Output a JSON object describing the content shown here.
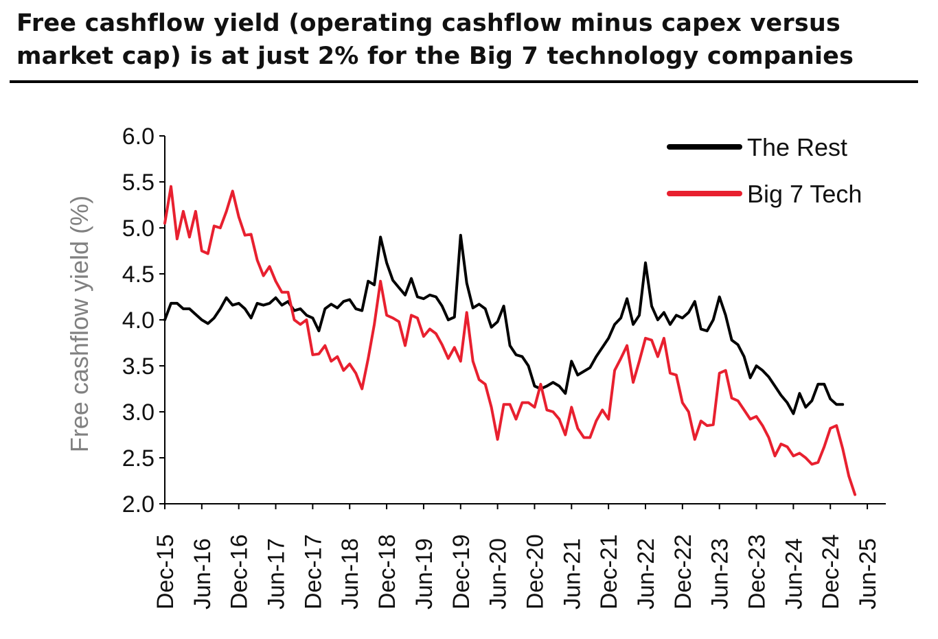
{
  "title": "Free cashflow yield (operating cashflow minus capex versus market cap) is at just 2% for the Big 7 technology companies",
  "chart_data": {
    "type": "line",
    "ylabel": "Free cashflow yield (%)",
    "xlabel": "",
    "ylim": [
      2.0,
      6.0
    ],
    "yticks": [
      "2.0",
      "2.5",
      "3.0",
      "3.5",
      "4.0",
      "4.5",
      "5.0",
      "5.5",
      "6.0"
    ],
    "xlim": [
      0,
      117
    ],
    "xticks": [
      {
        "pos": 0,
        "label": "Dec-15"
      },
      {
        "pos": 6,
        "label": "Jun-16"
      },
      {
        "pos": 12,
        "label": "Dec-16"
      },
      {
        "pos": 18,
        "label": "Jun-17"
      },
      {
        "pos": 24,
        "label": "Dec-17"
      },
      {
        "pos": 30,
        "label": "Jun-18"
      },
      {
        "pos": 36,
        "label": "Dec-18"
      },
      {
        "pos": 42,
        "label": "Jun-19"
      },
      {
        "pos": 48,
        "label": "Dec-19"
      },
      {
        "pos": 54,
        "label": "Jun-20"
      },
      {
        "pos": 60,
        "label": "Dec-20"
      },
      {
        "pos": 66,
        "label": "Jun-21"
      },
      {
        "pos": 72,
        "label": "Dec-21"
      },
      {
        "pos": 78,
        "label": "Jun-22"
      },
      {
        "pos": 84,
        "label": "Dec-22"
      },
      {
        "pos": 90,
        "label": "Jun-23"
      },
      {
        "pos": 96,
        "label": "Dec-23"
      },
      {
        "pos": 102,
        "label": "Jun-24"
      },
      {
        "pos": 108,
        "label": "Dec-24"
      },
      {
        "pos": 114,
        "label": "Jun-25"
      }
    ],
    "legend_position": "top-right",
    "series": [
      {
        "name": "The Rest",
        "color": "#000000",
        "points": [
          [
            0,
            4.0
          ],
          [
            1,
            4.18
          ],
          [
            2,
            4.18
          ],
          [
            3,
            4.12
          ],
          [
            4,
            4.12
          ],
          [
            5,
            4.06
          ],
          [
            6,
            4.0
          ],
          [
            7,
            3.96
          ],
          [
            8,
            4.02
          ],
          [
            9,
            4.12
          ],
          [
            10,
            4.24
          ],
          [
            11,
            4.16
          ],
          [
            12,
            4.18
          ],
          [
            13,
            4.12
          ],
          [
            14,
            4.02
          ],
          [
            15,
            4.18
          ],
          [
            16,
            4.16
          ],
          [
            17,
            4.18
          ],
          [
            18,
            4.24
          ],
          [
            19,
            4.16
          ],
          [
            20,
            4.2
          ],
          [
            21,
            4.1
          ],
          [
            22,
            4.12
          ],
          [
            23,
            4.05
          ],
          [
            24,
            4.02
          ],
          [
            25,
            3.88
          ],
          [
            26,
            4.12
          ],
          [
            27,
            4.17
          ],
          [
            28,
            4.13
          ],
          [
            29,
            4.2
          ],
          [
            30,
            4.22
          ],
          [
            31,
            4.12
          ],
          [
            32,
            4.1
          ],
          [
            33,
            4.42
          ],
          [
            34,
            4.38
          ],
          [
            35,
            4.9
          ],
          [
            36,
            4.62
          ],
          [
            37,
            4.43
          ],
          [
            38,
            4.35
          ],
          [
            39,
            4.27
          ],
          [
            40,
            4.45
          ],
          [
            41,
            4.25
          ],
          [
            42,
            4.23
          ],
          [
            43,
            4.27
          ],
          [
            44,
            4.25
          ],
          [
            45,
            4.15
          ],
          [
            46,
            4.0
          ],
          [
            47,
            4.03
          ],
          [
            48,
            4.92
          ],
          [
            49,
            4.4
          ],
          [
            50,
            4.13
          ],
          [
            51,
            4.17
          ],
          [
            52,
            4.12
          ],
          [
            53,
            3.92
          ],
          [
            54,
            3.98
          ],
          [
            55,
            4.15
          ],
          [
            56,
            3.72
          ],
          [
            57,
            3.62
          ],
          [
            58,
            3.6
          ],
          [
            59,
            3.5
          ],
          [
            60,
            3.28
          ],
          [
            61,
            3.25
          ],
          [
            62,
            3.28
          ],
          [
            63,
            3.32
          ],
          [
            64,
            3.28
          ],
          [
            65,
            3.2
          ],
          [
            66,
            3.55
          ],
          [
            67,
            3.4
          ],
          [
            68,
            3.44
          ],
          [
            69,
            3.48
          ],
          [
            70,
            3.6
          ],
          [
            71,
            3.7
          ],
          [
            72,
            3.8
          ],
          [
            73,
            3.95
          ],
          [
            74,
            4.02
          ],
          [
            75,
            4.23
          ],
          [
            76,
            3.95
          ],
          [
            77,
            4.05
          ],
          [
            78,
            4.62
          ],
          [
            79,
            4.15
          ],
          [
            80,
            4.0
          ],
          [
            81,
            4.08
          ],
          [
            82,
            3.95
          ],
          [
            83,
            4.05
          ],
          [
            84,
            4.02
          ],
          [
            85,
            4.08
          ],
          [
            86,
            4.2
          ],
          [
            87,
            3.9
          ],
          [
            88,
            3.88
          ],
          [
            89,
            4.0
          ],
          [
            90,
            4.25
          ],
          [
            91,
            4.05
          ],
          [
            92,
            3.78
          ],
          [
            93,
            3.73
          ],
          [
            94,
            3.6
          ],
          [
            95,
            3.37
          ],
          [
            96,
            3.5
          ],
          [
            97,
            3.45
          ],
          [
            98,
            3.38
          ],
          [
            99,
            3.28
          ],
          [
            100,
            3.18
          ],
          [
            101,
            3.1
          ],
          [
            102,
            2.98
          ],
          [
            103,
            3.2
          ],
          [
            104,
            3.05
          ],
          [
            105,
            3.12
          ],
          [
            106,
            3.3
          ],
          [
            107,
            3.3
          ],
          [
            108,
            3.14
          ],
          [
            109,
            3.08
          ],
          [
            110,
            3.08
          ]
        ]
      },
      {
        "name": "Big 7 Tech",
        "color": "#e8202f",
        "points": [
          [
            0,
            5.05
          ],
          [
            1,
            5.45
          ],
          [
            2,
            4.88
          ],
          [
            3,
            5.18
          ],
          [
            4,
            4.9
          ],
          [
            5,
            5.18
          ],
          [
            6,
            4.75
          ],
          [
            7,
            4.72
          ],
          [
            8,
            5.02
          ],
          [
            9,
            5.0
          ],
          [
            10,
            5.18
          ],
          [
            11,
            5.4
          ],
          [
            12,
            5.12
          ],
          [
            13,
            4.92
          ],
          [
            14,
            4.93
          ],
          [
            15,
            4.65
          ],
          [
            16,
            4.48
          ],
          [
            17,
            4.58
          ],
          [
            18,
            4.42
          ],
          [
            19,
            4.3
          ],
          [
            20,
            4.3
          ],
          [
            21,
            4.0
          ],
          [
            22,
            3.95
          ],
          [
            23,
            4.0
          ],
          [
            24,
            3.62
          ],
          [
            25,
            3.63
          ],
          [
            26,
            3.72
          ],
          [
            27,
            3.55
          ],
          [
            28,
            3.6
          ],
          [
            29,
            3.45
          ],
          [
            30,
            3.52
          ],
          [
            31,
            3.42
          ],
          [
            32,
            3.25
          ],
          [
            33,
            3.58
          ],
          [
            34,
            3.95
          ],
          [
            35,
            4.42
          ],
          [
            36,
            4.05
          ],
          [
            37,
            4.02
          ],
          [
            38,
            3.98
          ],
          [
            39,
            3.72
          ],
          [
            40,
            4.05
          ],
          [
            41,
            4.02
          ],
          [
            42,
            3.82
          ],
          [
            43,
            3.9
          ],
          [
            44,
            3.85
          ],
          [
            45,
            3.73
          ],
          [
            46,
            3.58
          ],
          [
            47,
            3.7
          ],
          [
            48,
            3.55
          ],
          [
            49,
            4.08
          ],
          [
            50,
            3.55
          ],
          [
            51,
            3.35
          ],
          [
            52,
            3.3
          ],
          [
            53,
            3.05
          ],
          [
            54,
            2.7
          ],
          [
            55,
            3.08
          ],
          [
            56,
            3.08
          ],
          [
            57,
            2.92
          ],
          [
            58,
            3.1
          ],
          [
            59,
            3.1
          ],
          [
            60,
            3.05
          ],
          [
            61,
            3.3
          ],
          [
            62,
            3.02
          ],
          [
            63,
            3.0
          ],
          [
            64,
            2.92
          ],
          [
            65,
            2.75
          ],
          [
            66,
            3.05
          ],
          [
            67,
            2.82
          ],
          [
            68,
            2.72
          ],
          [
            69,
            2.72
          ],
          [
            70,
            2.9
          ],
          [
            71,
            3.02
          ],
          [
            72,
            2.92
          ],
          [
            73,
            3.45
          ],
          [
            74,
            3.58
          ],
          [
            75,
            3.72
          ],
          [
            76,
            3.32
          ],
          [
            77,
            3.55
          ],
          [
            78,
            3.8
          ],
          [
            79,
            3.78
          ],
          [
            80,
            3.6
          ],
          [
            81,
            3.8
          ],
          [
            82,
            3.42
          ],
          [
            83,
            3.4
          ],
          [
            84,
            3.1
          ],
          [
            85,
            3.0
          ],
          [
            86,
            2.7
          ],
          [
            87,
            2.9
          ],
          [
            88,
            2.85
          ],
          [
            89,
            2.86
          ],
          [
            90,
            3.42
          ],
          [
            91,
            3.45
          ],
          [
            92,
            3.15
          ],
          [
            93,
            3.12
          ],
          [
            94,
            3.02
          ],
          [
            95,
            2.92
          ],
          [
            96,
            2.95
          ],
          [
            97,
            2.85
          ],
          [
            98,
            2.72
          ],
          [
            99,
            2.52
          ],
          [
            100,
            2.65
          ],
          [
            101,
            2.62
          ],
          [
            102,
            2.52
          ],
          [
            103,
            2.55
          ],
          [
            104,
            2.5
          ],
          [
            105,
            2.43
          ],
          [
            106,
            2.45
          ],
          [
            107,
            2.62
          ],
          [
            108,
            2.82
          ],
          [
            109,
            2.85
          ],
          [
            110,
            2.6
          ],
          [
            111,
            2.3
          ],
          [
            112,
            2.1
          ]
        ]
      }
    ]
  }
}
